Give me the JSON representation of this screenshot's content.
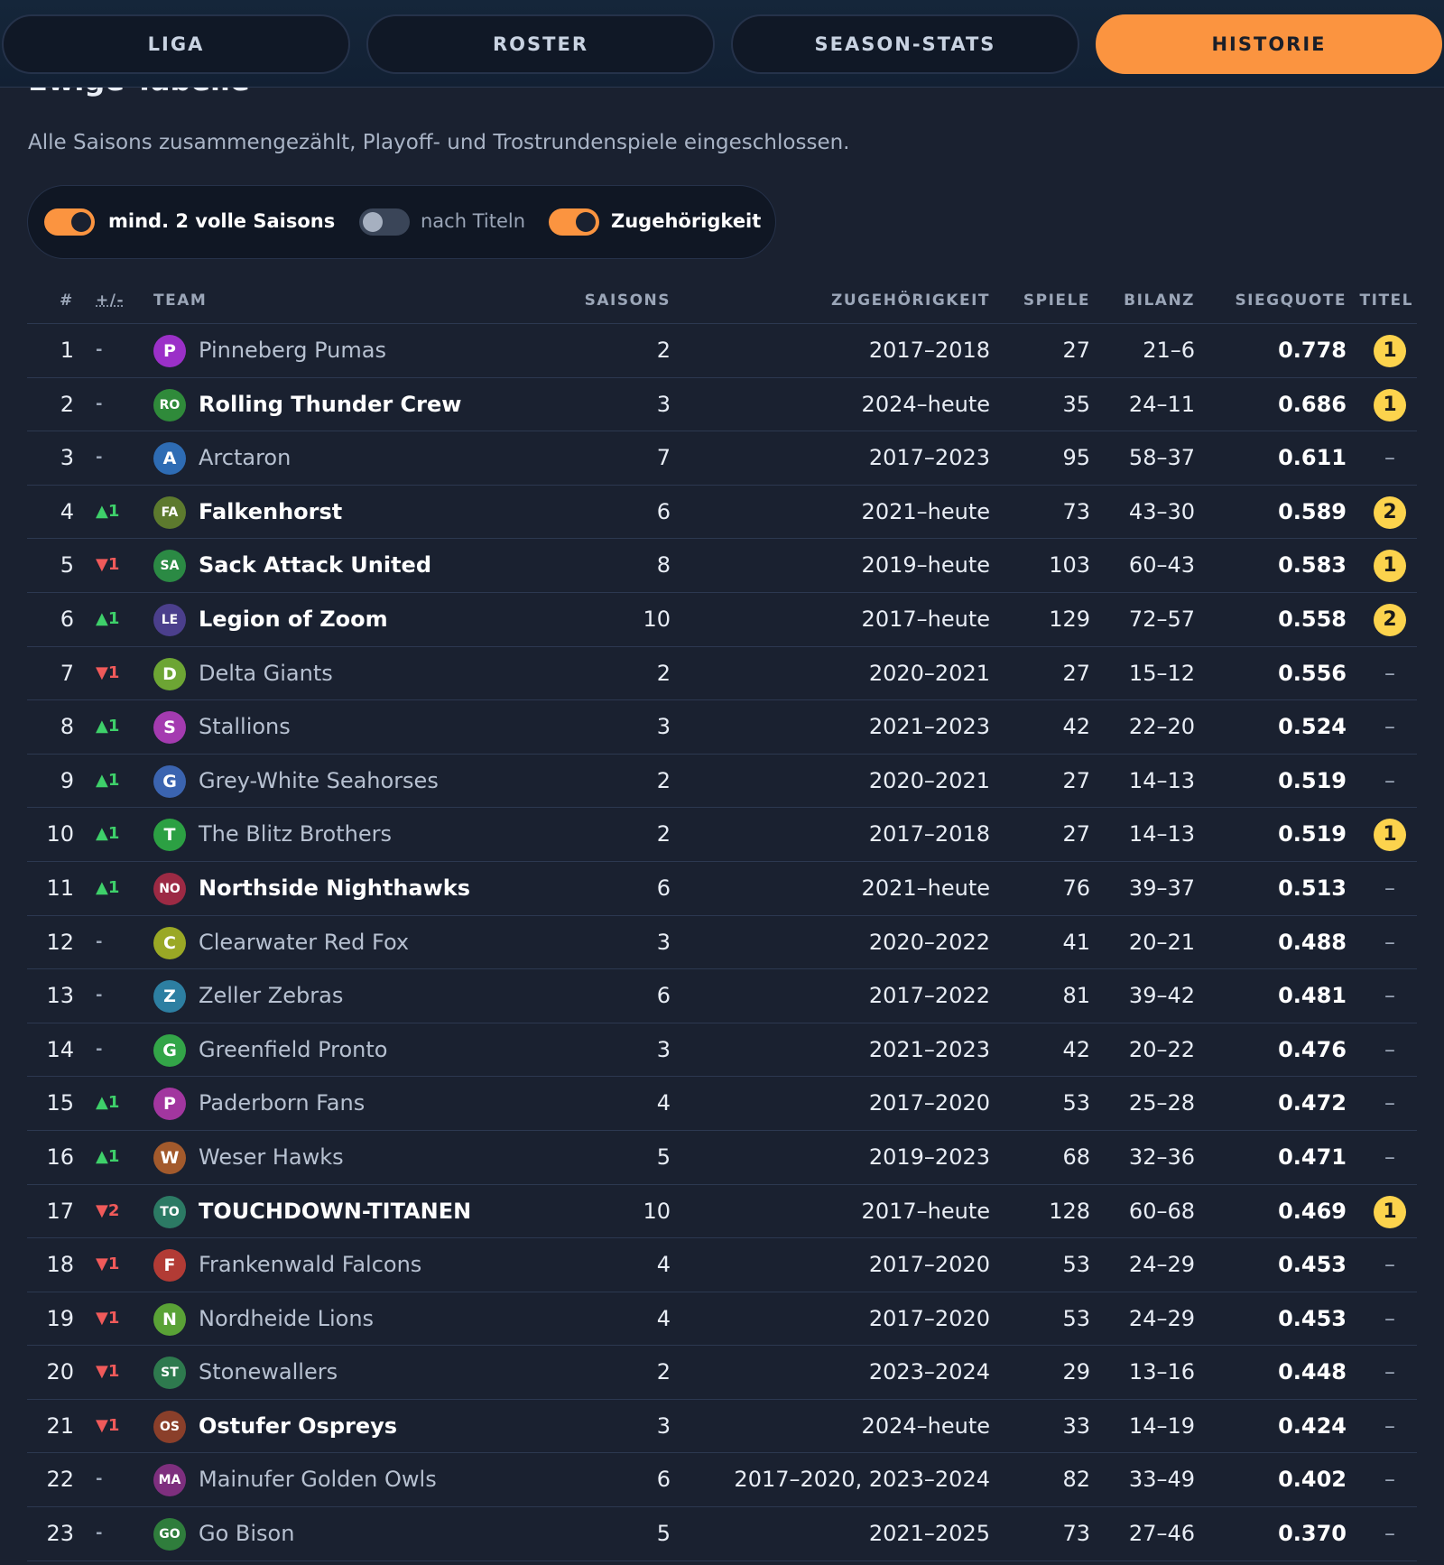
{
  "tabs": [
    {
      "label": "LIGA",
      "active": false
    },
    {
      "label": "ROSTER",
      "active": false
    },
    {
      "label": "SEASON-STATS",
      "active": false
    },
    {
      "label": "HISTORIE",
      "active": true
    }
  ],
  "section": {
    "title": "Ewige Tabelle",
    "subtitle": "Alle Saisons zusammengezählt, Playoff- und Trostrundenspiele eingeschlossen."
  },
  "filters": [
    {
      "label": "mind. 2 volle Saisons",
      "on": true
    },
    {
      "label": "nach Titeln",
      "on": false
    },
    {
      "label": "Zugehörigkeit",
      "on": true
    }
  ],
  "columns": {
    "rank": "#",
    "change": "+/-",
    "team": "TEAM",
    "seasons": "SAISONS",
    "membership": "ZUGEHÖRIGKEIT",
    "games": "SPIELE",
    "record": "BILANZ",
    "win_pct": "SIEGQUOTE",
    "titles": "TITEL"
  },
  "colors": {
    "accent": "#fb9440",
    "up": "#3ed06a",
    "down": "#f05a5a",
    "title_badge": "#fcd34d"
  },
  "rows": [
    {
      "rank": "1",
      "change": "-",
      "dir": "same",
      "initials": "P",
      "avatar_color": "#9b30c8",
      "team": "Pinneberg Pumas",
      "bold": false,
      "seasons": "2",
      "membership": "2017–2018",
      "games": "27",
      "record": "21–6",
      "pct": "0.778",
      "titles": "1"
    },
    {
      "rank": "2",
      "change": "-",
      "dir": "same",
      "initials": "RO",
      "avatar_color": "#2f8a3a",
      "team": "Rolling Thunder Crew",
      "bold": true,
      "seasons": "3",
      "membership": "2024–heute",
      "games": "35",
      "record": "24–11",
      "pct": "0.686",
      "titles": "1"
    },
    {
      "rank": "3",
      "change": "-",
      "dir": "same",
      "initials": "A",
      "avatar_color": "#2e6cb4",
      "team": "Arctaron",
      "bold": false,
      "seasons": "7",
      "membership": "2017–2023",
      "games": "95",
      "record": "58–37",
      "pct": "0.611",
      "titles": "–"
    },
    {
      "rank": "4",
      "change": "▲1",
      "dir": "up",
      "initials": "FA",
      "avatar_color": "#5d7a2e",
      "team": "Falkenhorst",
      "bold": true,
      "seasons": "6",
      "membership": "2021–heute",
      "games": "73",
      "record": "43–30",
      "pct": "0.589",
      "titles": "2"
    },
    {
      "rank": "5",
      "change": "▼1",
      "dir": "down",
      "initials": "SA",
      "avatar_color": "#2b8a44",
      "team": "Sack Attack United",
      "bold": true,
      "seasons": "8",
      "membership": "2019–heute",
      "games": "103",
      "record": "60–43",
      "pct": "0.583",
      "titles": "1"
    },
    {
      "rank": "6",
      "change": "▲1",
      "dir": "up",
      "initials": "LE",
      "avatar_color": "#4b3f8c",
      "team": "Legion of Zoom",
      "bold": true,
      "seasons": "10",
      "membership": "2017–heute",
      "games": "129",
      "record": "72–57",
      "pct": "0.558",
      "titles": "2"
    },
    {
      "rank": "7",
      "change": "▼1",
      "dir": "down",
      "initials": "D",
      "avatar_color": "#6da534",
      "team": "Delta Giants",
      "bold": false,
      "seasons": "2",
      "membership": "2020–2021",
      "games": "27",
      "record": "15–12",
      "pct": "0.556",
      "titles": "–"
    },
    {
      "rank": "8",
      "change": "▲1",
      "dir": "up",
      "initials": "S",
      "avatar_color": "#a43bb0",
      "team": "Stallions",
      "bold": false,
      "seasons": "3",
      "membership": "2021–2023",
      "games": "42",
      "record": "22–20",
      "pct": "0.524",
      "titles": "–"
    },
    {
      "rank": "9",
      "change": "▲1",
      "dir": "up",
      "initials": "G",
      "avatar_color": "#3b64b0",
      "team": "Grey-White Seahorses",
      "bold": false,
      "seasons": "2",
      "membership": "2020–2021",
      "games": "27",
      "record": "14–13",
      "pct": "0.519",
      "titles": "–"
    },
    {
      "rank": "10",
      "change": "▲1",
      "dir": "up",
      "initials": "T",
      "avatar_color": "#2ca043",
      "team": "The Blitz Brothers",
      "bold": false,
      "seasons": "2",
      "membership": "2017–2018",
      "games": "27",
      "record": "14–13",
      "pct": "0.519",
      "titles": "1"
    },
    {
      "rank": "11",
      "change": "▲1",
      "dir": "up",
      "initials": "NO",
      "avatar_color": "#9c2a44",
      "team": "Northside Nighthawks",
      "bold": true,
      "seasons": "6",
      "membership": "2021–heute",
      "games": "76",
      "record": "39–37",
      "pct": "0.513",
      "titles": "–"
    },
    {
      "rank": "12",
      "change": "-",
      "dir": "same",
      "initials": "C",
      "avatar_color": "#9aa825",
      "team": "Clearwater Red Fox",
      "bold": false,
      "seasons": "3",
      "membership": "2020–2022",
      "games": "41",
      "record": "20–21",
      "pct": "0.488",
      "titles": "–"
    },
    {
      "rank": "13",
      "change": "-",
      "dir": "same",
      "initials": "Z",
      "avatar_color": "#2d7fa2",
      "team": "Zeller Zebras",
      "bold": false,
      "seasons": "6",
      "membership": "2017–2022",
      "games": "81",
      "record": "39–42",
      "pct": "0.481",
      "titles": "–"
    },
    {
      "rank": "14",
      "change": "-",
      "dir": "same",
      "initials": "G",
      "avatar_color": "#33a548",
      "team": "Greenfield Pronto",
      "bold": false,
      "seasons": "3",
      "membership": "2021–2023",
      "games": "42",
      "record": "20–22",
      "pct": "0.476",
      "titles": "–"
    },
    {
      "rank": "15",
      "change": "▲1",
      "dir": "up",
      "initials": "P",
      "avatar_color": "#a2369f",
      "team": "Paderborn Fans",
      "bold": false,
      "seasons": "4",
      "membership": "2017–2020",
      "games": "53",
      "record": "25–28",
      "pct": "0.472",
      "titles": "–"
    },
    {
      "rank": "16",
      "change": "▲1",
      "dir": "up",
      "initials": "W",
      "avatar_color": "#a35a2c",
      "team": "Weser Hawks",
      "bold": false,
      "seasons": "5",
      "membership": "2019–2023",
      "games": "68",
      "record": "32–36",
      "pct": "0.471",
      "titles": "–"
    },
    {
      "rank": "17",
      "change": "▼2",
      "dir": "down",
      "initials": "TO",
      "avatar_color": "#2c7a64",
      "team": "TOUCHDOWN-TITANEN",
      "bold": true,
      "seasons": "10",
      "membership": "2017–heute",
      "games": "128",
      "record": "60–68",
      "pct": "0.469",
      "titles": "1"
    },
    {
      "rank": "18",
      "change": "▼1",
      "dir": "down",
      "initials": "F",
      "avatar_color": "#b23b35",
      "team": "Frankenwald Falcons",
      "bold": false,
      "seasons": "4",
      "membership": "2017–2020",
      "games": "53",
      "record": "24–29",
      "pct": "0.453",
      "titles": "–"
    },
    {
      "rank": "19",
      "change": "▼1",
      "dir": "down",
      "initials": "N",
      "avatar_color": "#5aa236",
      "team": "Nordheide Lions",
      "bold": false,
      "seasons": "4",
      "membership": "2017–2020",
      "games": "53",
      "record": "24–29",
      "pct": "0.453",
      "titles": "–"
    },
    {
      "rank": "20",
      "change": "▼1",
      "dir": "down",
      "initials": "ST",
      "avatar_color": "#2e7a4e",
      "team": "Stonewallers",
      "bold": false,
      "seasons": "2",
      "membership": "2023–2024",
      "games": "29",
      "record": "13–16",
      "pct": "0.448",
      "titles": "–"
    },
    {
      "rank": "21",
      "change": "▼1",
      "dir": "down",
      "initials": "OS",
      "avatar_color": "#8a3f2a",
      "team": "Ostufer Ospreys",
      "bold": true,
      "seasons": "3",
      "membership": "2024–heute",
      "games": "33",
      "record": "14–19",
      "pct": "0.424",
      "titles": "–"
    },
    {
      "rank": "22",
      "change": "-",
      "dir": "same",
      "initials": "MA",
      "avatar_color": "#7e2f7e",
      "team": "Mainufer Golden Owls",
      "bold": false,
      "seasons": "6",
      "membership": "2017–2020, 2023–2024",
      "games": "82",
      "record": "33–49",
      "pct": "0.402",
      "titles": "–"
    },
    {
      "rank": "23",
      "change": "-",
      "dir": "same",
      "initials": "GO",
      "avatar_color": "#2f7d3c",
      "team": "Go Bison",
      "bold": false,
      "seasons": "5",
      "membership": "2021–2025",
      "games": "73",
      "record": "27–46",
      "pct": "0.370",
      "titles": "–"
    }
  ]
}
